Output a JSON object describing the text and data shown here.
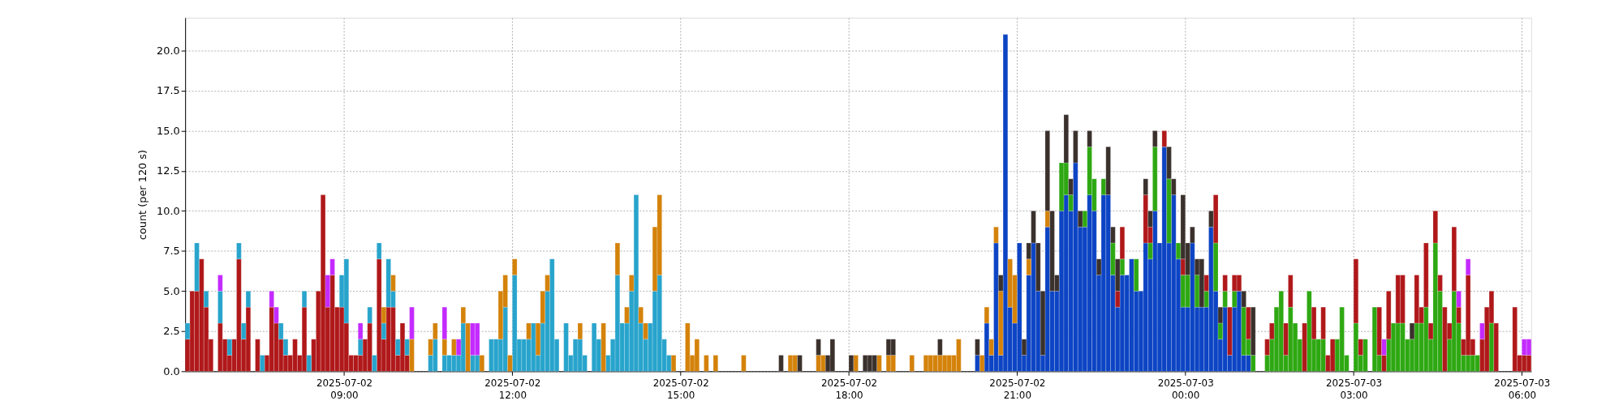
{
  "chart_data": {
    "type": "bar",
    "stacked": true,
    "ylabel": "count (per 120 s)",
    "grid": true,
    "xlim": [
      "2025-07-02T06:10",
      "2025-07-03T06:10"
    ],
    "xticks": [
      {
        "value": "2025-07-02T09:00",
        "label": "2025-07-02\n09:00"
      },
      {
        "value": "2025-07-02T12:00",
        "label": "2025-07-02\n12:00"
      },
      {
        "value": "2025-07-02T15:00",
        "label": "2025-07-02\n15:00"
      },
      {
        "value": "2025-07-02T18:00",
        "label": "2025-07-02\n18:00"
      },
      {
        "value": "2025-07-02T21:00",
        "label": "2025-07-02\n21:00"
      },
      {
        "value": "2025-07-03T00:00",
        "label": "2025-07-03\n00:00"
      },
      {
        "value": "2025-07-03T03:00",
        "label": "2025-07-03\n03:00"
      },
      {
        "value": "2025-07-03T06:00",
        "label": "2025-07-03\n06:00"
      }
    ],
    "ylim": [
      0,
      22.05
    ],
    "yticks": [
      {
        "value": 0,
        "label": "0.0"
      },
      {
        "value": 2.5,
        "label": "2.5"
      },
      {
        "value": 5,
        "label": "5.0"
      },
      {
        "value": 7.5,
        "label": "7.5"
      },
      {
        "value": 10,
        "label": "10.0"
      },
      {
        "value": 12.5,
        "label": "12.5"
      },
      {
        "value": 15,
        "label": "15.0"
      },
      {
        "value": 17.5,
        "label": "17.5"
      },
      {
        "value": 20,
        "label": "20.0"
      }
    ],
    "x": [
      "2025-07-02T06:10",
      "2025-07-02T06:15",
      "2025-07-02T06:20",
      "2025-07-02T06:25",
      "2025-07-02T06:30",
      "2025-07-02T06:35",
      "2025-07-02T06:40",
      "2025-07-02T06:45",
      "2025-07-02T06:50",
      "2025-07-02T06:55",
      "2025-07-02T07:00",
      "2025-07-02T07:05",
      "2025-07-02T07:10",
      "2025-07-02T07:15",
      "2025-07-02T07:20",
      "2025-07-02T07:25",
      "2025-07-02T07:30",
      "2025-07-02T07:35",
      "2025-07-02T07:40",
      "2025-07-02T07:45",
      "2025-07-02T07:50",
      "2025-07-02T07:55",
      "2025-07-02T08:00",
      "2025-07-02T08:05",
      "2025-07-02T08:10",
      "2025-07-02T08:15",
      "2025-07-02T08:20",
      "2025-07-02T08:25",
      "2025-07-02T08:30",
      "2025-07-02T08:35",
      "2025-07-02T08:40",
      "2025-07-02T08:45",
      "2025-07-02T08:50",
      "2025-07-02T08:55",
      "2025-07-02T09:00",
      "2025-07-02T09:05",
      "2025-07-02T09:10",
      "2025-07-02T09:15",
      "2025-07-02T09:20",
      "2025-07-02T09:25",
      "2025-07-02T09:30",
      "2025-07-02T09:35",
      "2025-07-02T09:40",
      "2025-07-02T09:45",
      "2025-07-02T09:50",
      "2025-07-02T09:55",
      "2025-07-02T10:00",
      "2025-07-02T10:05",
      "2025-07-02T10:10",
      "2025-07-02T10:15",
      "2025-07-02T10:20",
      "2025-07-02T10:25",
      "2025-07-02T10:30",
      "2025-07-02T10:35",
      "2025-07-02T10:40",
      "2025-07-02T10:45",
      "2025-07-02T10:50",
      "2025-07-02T10:55",
      "2025-07-02T11:00",
      "2025-07-02T11:05",
      "2025-07-02T11:10",
      "2025-07-02T11:15",
      "2025-07-02T11:20",
      "2025-07-02T11:25",
      "2025-07-02T11:30",
      "2025-07-02T11:35",
      "2025-07-02T11:40",
      "2025-07-02T11:45",
      "2025-07-02T11:50",
      "2025-07-02T11:55",
      "2025-07-02T12:00",
      "2025-07-02T12:05",
      "2025-07-02T12:10",
      "2025-07-02T12:15",
      "2025-07-02T12:20",
      "2025-07-02T12:25",
      "2025-07-02T12:30",
      "2025-07-02T12:35",
      "2025-07-02T12:40",
      "2025-07-02T12:45",
      "2025-07-02T12:50",
      "2025-07-02T12:55",
      "2025-07-02T13:00",
      "2025-07-02T13:05",
      "2025-07-02T13:10",
      "2025-07-02T13:15",
      "2025-07-02T13:20",
      "2025-07-02T13:25",
      "2025-07-02T13:30",
      "2025-07-02T13:35",
      "2025-07-02T13:40",
      "2025-07-02T13:45",
      "2025-07-02T13:50",
      "2025-07-02T13:55",
      "2025-07-02T14:00",
      "2025-07-02T14:05",
      "2025-07-02T14:10",
      "2025-07-02T14:15",
      "2025-07-02T14:20",
      "2025-07-02T14:25",
      "2025-07-02T14:30",
      "2025-07-02T14:35",
      "2025-07-02T14:40",
      "2025-07-02T14:45",
      "2025-07-02T14:50",
      "2025-07-02T14:55",
      "2025-07-02T15:00",
      "2025-07-02T15:05",
      "2025-07-02T15:10",
      "2025-07-02T15:15",
      "2025-07-02T15:20",
      "2025-07-02T15:25",
      "2025-07-02T15:30",
      "2025-07-02T15:35",
      "2025-07-02T15:40",
      "2025-07-02T15:45",
      "2025-07-02T15:50",
      "2025-07-02T15:55",
      "2025-07-02T16:00",
      "2025-07-02T16:05",
      "2025-07-02T16:10",
      "2025-07-02T16:15",
      "2025-07-02T16:20",
      "2025-07-02T16:25",
      "2025-07-02T16:30",
      "2025-07-02T16:35",
      "2025-07-02T16:40",
      "2025-07-02T16:45",
      "2025-07-02T16:50",
      "2025-07-02T16:55",
      "2025-07-02T17:00",
      "2025-07-02T17:05",
      "2025-07-02T17:10",
      "2025-07-02T17:15",
      "2025-07-02T17:20",
      "2025-07-02T17:25",
      "2025-07-02T17:30",
      "2025-07-02T17:35",
      "2025-07-02T17:40",
      "2025-07-02T17:45",
      "2025-07-02T17:50",
      "2025-07-02T17:55",
      "2025-07-02T18:00",
      "2025-07-02T18:05",
      "2025-07-02T18:10",
      "2025-07-02T18:15",
      "2025-07-02T18:20",
      "2025-07-02T18:25",
      "2025-07-02T18:30",
      "2025-07-02T18:35",
      "2025-07-02T18:40",
      "2025-07-02T18:45",
      "2025-07-02T18:50",
      "2025-07-02T18:55",
      "2025-07-02T19:00",
      "2025-07-02T19:05",
      "2025-07-02T19:10",
      "2025-07-02T19:15",
      "2025-07-02T19:20",
      "2025-07-02T19:25",
      "2025-07-02T19:30",
      "2025-07-02T19:35",
      "2025-07-02T19:40",
      "2025-07-02T19:45",
      "2025-07-02T19:50",
      "2025-07-02T19:55",
      "2025-07-02T20:00",
      "2025-07-02T20:05",
      "2025-07-02T20:10",
      "2025-07-02T20:15",
      "2025-07-02T20:20",
      "2025-07-02T20:25",
      "2025-07-02T20:30",
      "2025-07-02T20:35",
      "2025-07-02T20:40",
      "2025-07-02T20:45",
      "2025-07-02T20:50",
      "2025-07-02T20:55",
      "2025-07-02T21:00",
      "2025-07-02T21:05",
      "2025-07-02T21:10",
      "2025-07-02T21:15",
      "2025-07-02T21:20",
      "2025-07-02T21:25",
      "2025-07-02T21:30",
      "2025-07-02T21:35",
      "2025-07-02T21:40",
      "2025-07-02T21:45",
      "2025-07-02T21:50",
      "2025-07-02T21:55",
      "2025-07-02T22:00",
      "2025-07-02T22:05",
      "2025-07-02T22:10",
      "2025-07-02T22:15",
      "2025-07-02T22:20",
      "2025-07-02T22:25",
      "2025-07-02T22:30",
      "2025-07-02T22:35",
      "2025-07-02T22:40",
      "2025-07-02T22:45",
      "2025-07-02T22:50",
      "2025-07-02T22:55",
      "2025-07-02T23:00",
      "2025-07-02T23:05",
      "2025-07-02T23:10",
      "2025-07-02T23:15",
      "2025-07-02T23:20",
      "2025-07-02T23:25",
      "2025-07-02T23:30",
      "2025-07-02T23:35",
      "2025-07-02T23:40",
      "2025-07-02T23:45",
      "2025-07-02T23:50",
      "2025-07-02T23:55",
      "2025-07-03T00:00",
      "2025-07-03T00:05",
      "2025-07-03T00:10",
      "2025-07-03T00:15",
      "2025-07-03T00:20",
      "2025-07-03T00:25",
      "2025-07-03T00:30",
      "2025-07-03T00:35",
      "2025-07-03T00:40",
      "2025-07-03T00:45",
      "2025-07-03T00:50",
      "2025-07-03T00:55",
      "2025-07-03T01:00",
      "2025-07-03T01:05",
      "2025-07-03T01:10",
      "2025-07-03T01:15",
      "2025-07-03T01:20",
      "2025-07-03T01:25",
      "2025-07-03T01:30",
      "2025-07-03T01:35",
      "2025-07-03T01:40",
      "2025-07-03T01:45",
      "2025-07-03T01:50",
      "2025-07-03T01:55",
      "2025-07-03T02:00",
      "2025-07-03T02:05",
      "2025-07-03T02:10",
      "2025-07-03T02:15",
      "2025-07-03T02:20",
      "2025-07-03T02:25",
      "2025-07-03T02:30",
      "2025-07-03T02:35",
      "2025-07-03T02:40",
      "2025-07-03T02:45",
      "2025-07-03T02:50",
      "2025-07-03T02:55",
      "2025-07-03T03:00",
      "2025-07-03T03:05",
      "2025-07-03T03:10",
      "2025-07-03T03:15",
      "2025-07-03T03:20",
      "2025-07-03T03:25",
      "2025-07-03T03:30",
      "2025-07-03T03:35",
      "2025-07-03T03:40",
      "2025-07-03T03:45",
      "2025-07-03T03:50",
      "2025-07-03T03:55",
      "2025-07-03T04:00",
      "2025-07-03T04:05",
      "2025-07-03T04:10",
      "2025-07-03T04:15",
      "2025-07-03T04:20",
      "2025-07-03T04:25",
      "2025-07-03T04:30",
      "2025-07-03T04:35",
      "2025-07-03T04:40",
      "2025-07-03T04:45",
      "2025-07-03T04:50",
      "2025-07-03T04:55",
      "2025-07-03T05:00",
      "2025-07-03T05:05",
      "2025-07-03T05:10",
      "2025-07-03T05:15",
      "2025-07-03T05:20",
      "2025-07-03T05:25",
      "2025-07-03T05:30",
      "2025-07-03T05:35",
      "2025-07-03T05:40",
      "2025-07-03T05:45",
      "2025-07-03T05:50",
      "2025-07-03T05:55",
      "2025-07-03T06:00",
      "2025-07-03T06:05"
    ],
    "series": [
      {
        "color": "#0c44c4",
        "values": [
          0,
          0,
          0,
          0,
          0,
          0,
          0,
          0,
          0,
          0,
          0,
          0,
          0,
          0,
          0,
          0,
          0,
          0,
          0,
          0,
          0,
          0,
          0,
          0,
          0,
          0,
          0,
          0,
          0,
          0,
          0,
          0,
          0,
          0,
          0,
          0,
          0,
          0,
          0,
          0,
          0,
          0,
          0,
          0,
          0,
          0,
          0,
          0,
          0,
          0,
          0,
          0,
          0,
          0,
          0,
          0,
          0,
          0,
          0,
          0,
          0,
          0,
          0,
          0,
          0,
          0,
          0,
          0,
          0,
          0,
          0,
          0,
          0,
          0,
          0,
          0,
          0,
          0,
          0,
          0,
          0,
          0,
          0,
          0,
          0,
          0,
          0,
          0,
          0,
          0,
          0,
          0,
          0,
          0,
          0,
          0,
          0,
          0,
          0,
          0,
          0,
          0,
          0,
          0,
          0,
          0,
          0,
          0,
          0,
          0,
          0,
          0,
          0,
          0,
          0,
          0,
          0,
          0,
          0,
          0,
          0,
          0,
          0,
          0,
          0,
          0,
          0,
          0,
          0,
          0,
          0,
          0,
          0,
          0,
          0,
          0,
          0,
          0,
          0,
          0,
          0,
          0,
          0,
          0,
          0,
          0,
          0,
          0,
          0,
          0,
          0,
          0,
          0,
          0,
          0,
          0,
          0,
          0,
          0,
          0,
          0,
          0,
          0,
          0,
          0,
          0,
          0,
          0,
          0,
          1,
          0,
          3,
          1,
          8,
          1,
          21,
          4,
          3,
          8,
          1,
          6,
          8,
          5,
          1,
          9,
          5,
          5,
          10,
          11,
          10,
          13,
          9,
          9,
          11,
          10,
          6,
          11,
          11,
          6,
          4,
          6,
          6,
          7,
          5,
          5,
          8,
          7,
          10,
          8,
          14,
          8,
          11,
          7,
          4,
          4,
          8,
          4,
          4,
          4,
          9,
          5,
          2,
          4,
          1,
          4,
          5,
          1,
          1,
          0,
          0,
          0,
          0,
          0,
          0,
          0,
          0,
          0,
          0,
          0,
          0,
          0,
          0,
          0,
          0,
          0,
          0,
          0,
          0,
          0,
          0,
          0,
          0,
          0,
          0,
          0,
          0,
          0,
          0,
          0,
          0,
          0,
          0,
          0,
          0,
          0,
          0,
          0,
          0,
          0,
          0,
          0,
          0,
          0,
          0,
          0,
          0,
          0,
          0,
          0,
          0,
          0,
          0,
          0,
          0,
          0,
          0,
          0,
          0
        ]
      },
      {
        "color": "#2ea812",
        "values": [
          0,
          0,
          0,
          0,
          0,
          0,
          0,
          0,
          0,
          0,
          0,
          0,
          0,
          0,
          0,
          0,
          0,
          0,
          0,
          0,
          0,
          0,
          0,
          0,
          0,
          0,
          0,
          0,
          0,
          0,
          0,
          0,
          0,
          0,
          0,
          0,
          0,
          0,
          0,
          0,
          0,
          0,
          0,
          0,
          0,
          0,
          0,
          0,
          0,
          0,
          0,
          0,
          0,
          0,
          0,
          0,
          0,
          0,
          0,
          0,
          0,
          0,
          0,
          0,
          0,
          0,
          0,
          0,
          0,
          0,
          0,
          0,
          0,
          0,
          0,
          0,
          0,
          0,
          0,
          0,
          0,
          0,
          0,
          0,
          0,
          0,
          0,
          0,
          0,
          0,
          0,
          0,
          0,
          0,
          0,
          0,
          0,
          0,
          0,
          0,
          0,
          0,
          0,
          0,
          0,
          0,
          0,
          0,
          0,
          0,
          0,
          0,
          0,
          0,
          0,
          0,
          0,
          0,
          0,
          0,
          0,
          0,
          0,
          0,
          0,
          0,
          0,
          0,
          0,
          0,
          0,
          0,
          0,
          0,
          0,
          0,
          0,
          0,
          0,
          0,
          0,
          0,
          0,
          0,
          0,
          0,
          0,
          0,
          0,
          0,
          0,
          0,
          0,
          0,
          0,
          0,
          0,
          0,
          0,
          0,
          0,
          0,
          0,
          0,
          0,
          0,
          0,
          0,
          0,
          0,
          0,
          0,
          0,
          0,
          0,
          0,
          0,
          0,
          0,
          0,
          0,
          0,
          0,
          0,
          0,
          0,
          0,
          3,
          2,
          1,
          0,
          0,
          1,
          3,
          2,
          0,
          1,
          0,
          2,
          0,
          1,
          0,
          0,
          2,
          0,
          0,
          1,
          4,
          0,
          0,
          4,
          0,
          1,
          2,
          2,
          0,
          2,
          0,
          1,
          0,
          3,
          1,
          1,
          0,
          1,
          0,
          3,
          1,
          1,
          0,
          0,
          1,
          2,
          4,
          5,
          1,
          4,
          3,
          2,
          0,
          5,
          2,
          2,
          2,
          0,
          0,
          2,
          4,
          1,
          0,
          3,
          1,
          2,
          0,
          4,
          1,
          0,
          2,
          3,
          3,
          3,
          2,
          2,
          3,
          3,
          4,
          2,
          8,
          5,
          0,
          2,
          5,
          3,
          1,
          1,
          1,
          1,
          0,
          0,
          3,
          0,
          0,
          0,
          0,
          0,
          0,
          0,
          0
        ]
      },
      {
        "color": "#b0181a",
        "values": [
          2,
          5,
          5,
          7,
          4,
          2,
          0,
          3,
          2,
          1,
          2,
          7,
          2,
          4,
          0,
          2,
          0,
          1,
          4,
          3,
          2,
          1,
          1,
          2,
          1,
          4,
          0,
          2,
          5,
          11,
          4,
          6,
          4,
          4,
          3,
          1,
          1,
          1,
          2,
          3,
          0,
          7,
          2,
          4,
          4,
          1,
          3,
          1,
          0,
          0,
          0,
          0,
          0,
          0,
          0,
          0,
          0,
          0,
          0,
          0,
          0,
          0,
          0,
          0,
          0,
          0,
          0,
          0,
          0,
          0,
          0,
          0,
          0,
          0,
          0,
          0,
          0,
          0,
          0,
          0,
          0,
          0,
          0,
          0,
          0,
          0,
          0,
          0,
          0,
          0,
          0,
          0,
          0,
          0,
          0,
          0,
          0,
          0,
          0,
          0,
          0,
          0,
          0,
          0,
          0,
          0,
          0,
          0,
          0,
          0,
          0,
          0,
          0,
          0,
          0,
          0,
          0,
          0,
          0,
          0,
          0,
          0,
          0,
          0,
          0,
          0,
          0,
          0,
          0,
          0,
          0,
          0,
          0,
          0,
          0,
          0,
          0,
          0,
          0,
          0,
          0,
          0,
          0,
          0,
          0,
          0,
          0,
          0,
          0,
          0,
          0,
          0,
          0,
          0,
          0,
          0,
          0,
          0,
          0,
          0,
          0,
          0,
          0,
          0,
          0,
          0,
          0,
          0,
          0,
          0,
          0,
          0,
          0,
          0,
          0,
          0,
          0,
          0,
          0,
          0,
          0,
          0,
          0,
          0,
          0,
          0,
          0,
          0,
          0,
          0,
          0,
          0,
          0,
          0,
          0,
          0,
          0,
          0,
          0,
          1,
          2,
          0,
          0,
          0,
          0,
          3,
          1,
          0,
          0,
          1,
          0,
          0,
          0,
          1,
          0,
          0,
          0,
          0,
          1,
          0,
          3,
          0,
          1,
          3,
          1,
          1,
          0,
          2,
          0,
          0,
          0,
          1,
          1,
          0,
          0,
          2,
          2,
          0,
          0,
          3,
          0,
          2,
          0,
          2,
          1,
          2,
          0,
          0,
          0,
          0,
          4,
          1,
          0,
          0,
          0,
          3,
          1,
          3,
          0,
          3,
          3,
          0,
          0,
          3,
          1,
          4,
          1,
          2,
          1,
          4,
          1,
          4,
          1,
          1,
          5,
          1,
          0,
          2,
          4,
          2,
          3,
          0,
          0,
          0,
          4,
          1,
          1,
          1
        ]
      },
      {
        "color": "#28a4cc",
        "values": [
          1,
          0,
          3,
          0,
          1,
          0,
          0,
          2,
          0,
          1,
          0,
          1,
          1,
          1,
          0,
          0,
          1,
          0,
          0,
          0,
          1,
          1,
          0,
          0,
          0,
          1,
          1,
          0,
          0,
          0,
          0,
          0,
          0,
          2,
          4,
          0,
          0,
          1,
          0,
          1,
          1,
          1,
          1,
          3,
          1,
          1,
          0,
          1,
          0,
          0,
          0,
          0,
          1,
          2,
          0,
          1,
          1,
          1,
          1,
          3,
          0,
          1,
          1,
          0,
          0,
          2,
          2,
          2,
          4,
          0,
          6,
          2,
          2,
          2,
          3,
          1,
          3,
          5,
          7,
          2,
          0,
          3,
          1,
          2,
          2,
          1,
          0,
          3,
          2,
          0,
          1,
          2,
          6,
          3,
          3,
          5,
          11,
          3,
          2,
          3,
          5,
          6,
          2,
          1,
          0,
          0,
          0,
          0,
          0,
          0,
          0,
          0,
          0,
          0,
          0,
          0,
          0,
          0,
          0,
          0,
          0,
          0,
          0,
          0,
          0,
          0,
          0,
          0,
          0,
          0,
          0,
          0,
          0,
          0,
          0,
          0,
          0,
          0,
          0,
          0,
          0,
          0,
          0,
          0,
          0,
          0,
          0,
          0,
          0,
          0,
          0,
          0,
          0,
          0,
          0,
          0,
          0,
          0,
          0,
          0,
          0,
          0,
          0,
          0,
          0,
          0,
          0,
          0,
          0,
          0,
          0,
          0,
          0,
          0,
          0,
          0,
          0,
          0,
          0,
          0,
          0,
          0,
          0,
          0,
          0,
          0,
          0,
          0,
          0,
          0,
          0,
          0,
          0,
          0,
          0,
          0,
          0,
          0,
          0,
          0,
          0,
          0,
          0,
          0,
          0,
          0,
          0,
          0,
          0,
          0,
          0,
          0,
          0,
          0,
          0,
          0,
          0,
          0,
          0,
          0,
          0,
          0,
          0,
          0,
          0,
          0,
          0,
          0,
          0,
          0,
          0,
          0,
          0,
          0,
          0,
          0,
          0,
          0,
          0,
          0,
          0,
          0,
          0,
          0,
          0,
          0,
          0,
          0,
          0,
          0,
          0,
          0,
          0,
          0,
          0,
          0,
          0,
          0,
          0,
          0,
          0,
          0,
          0,
          0,
          0,
          0,
          0,
          0,
          0,
          0,
          0,
          0,
          0,
          0,
          0,
          0,
          0,
          0,
          0,
          0,
          0,
          0,
          0,
          0,
          0,
          0,
          0,
          0
        ]
      },
      {
        "color": "#d4820a",
        "values": [
          0,
          0,
          0,
          0,
          0,
          0,
          0,
          0,
          0,
          0,
          0,
          0,
          0,
          0,
          0,
          0,
          0,
          0,
          0,
          0,
          0,
          0,
          0,
          0,
          0,
          0,
          0,
          0,
          0,
          0,
          0,
          0,
          0,
          0,
          0,
          0,
          0,
          0,
          0,
          0,
          0,
          0,
          1,
          0,
          1,
          0,
          0,
          0,
          2,
          0,
          0,
          0,
          1,
          1,
          0,
          1,
          0,
          1,
          0,
          1,
          3,
          0,
          0,
          1,
          0,
          0,
          0,
          3,
          2,
          1,
          1,
          0,
          0,
          1,
          0,
          2,
          2,
          1,
          0,
          0,
          0,
          0,
          0,
          0,
          1,
          0,
          0,
          0,
          0,
          3,
          0,
          0,
          2,
          0,
          1,
          1,
          0,
          1,
          1,
          0,
          4,
          5,
          0,
          0,
          1,
          0,
          0,
          3,
          1,
          2,
          0,
          1,
          0,
          1,
          0,
          0,
          0,
          0,
          0,
          1,
          0,
          0,
          0,
          0,
          0,
          0,
          0,
          0,
          0,
          1,
          1,
          0,
          0,
          0,
          0,
          1,
          1,
          0,
          0,
          0,
          0,
          0,
          0,
          1,
          0,
          0,
          0,
          0,
          1,
          0,
          1,
          1,
          0,
          0,
          0,
          1,
          0,
          0,
          1,
          1,
          1,
          1,
          1,
          1,
          1,
          2,
          0,
          0,
          0,
          0,
          1,
          1,
          1,
          1,
          4,
          0,
          3,
          3,
          0,
          0,
          1,
          0,
          0,
          0,
          1,
          0,
          0,
          0,
          0,
          0,
          0,
          0,
          0,
          0,
          0,
          0,
          0,
          0,
          0,
          0,
          0,
          0,
          0,
          0,
          0,
          0,
          0,
          0,
          0,
          0,
          0,
          0,
          0,
          0,
          0,
          0,
          0,
          0,
          0,
          0,
          0,
          0,
          0,
          0,
          0,
          0,
          0,
          0,
          0,
          0,
          0,
          0,
          0,
          0,
          0,
          0,
          0,
          0,
          0,
          0,
          0,
          0,
          0,
          0,
          0,
          0,
          0,
          0,
          0,
          0,
          0,
          0,
          0,
          0,
          0,
          0,
          0,
          0,
          0,
          0,
          0,
          0,
          0,
          0,
          0,
          0,
          0,
          0,
          0,
          0,
          0,
          0,
          0,
          0,
          0,
          0,
          0,
          0,
          0,
          0,
          0,
          0,
          0,
          0,
          0,
          0,
          0,
          0
        ]
      },
      {
        "color": "#c42aff",
        "values": [
          0,
          0,
          0,
          0,
          0,
          0,
          0,
          1,
          0,
          0,
          0,
          0,
          0,
          0,
          0,
          0,
          0,
          0,
          1,
          1,
          0,
          0,
          0,
          0,
          0,
          0,
          0,
          0,
          0,
          0,
          2,
          1,
          0,
          0,
          0,
          0,
          0,
          1,
          0,
          0,
          0,
          0,
          0,
          0,
          0,
          0,
          0,
          0,
          2,
          0,
          0,
          0,
          0,
          0,
          0,
          2,
          0,
          0,
          1,
          0,
          0,
          2,
          2,
          0,
          0,
          0,
          0,
          0,
          0,
          0,
          0,
          0,
          0,
          0,
          0,
          0,
          0,
          0,
          0,
          0,
          0,
          0,
          0,
          0,
          0,
          0,
          0,
          0,
          0,
          0,
          0,
          0,
          0,
          0,
          0,
          0,
          0,
          0,
          0,
          0,
          0,
          0,
          0,
          0,
          0,
          0,
          0,
          0,
          0,
          0,
          0,
          0,
          0,
          0,
          0,
          0,
          0,
          0,
          0,
          0,
          0,
          0,
          0,
          0,
          0,
          0,
          0,
          0,
          0,
          0,
          0,
          0,
          0,
          0,
          0,
          0,
          0,
          0,
          0,
          0,
          0,
          0,
          0,
          0,
          0,
          0,
          0,
          0,
          0,
          0,
          0,
          0,
          0,
          0,
          0,
          0,
          0,
          0,
          0,
          0,
          0,
          0,
          0,
          0,
          0,
          0,
          0,
          0,
          0,
          0,
          0,
          0,
          0,
          0,
          0,
          0,
          0,
          0,
          0,
          0,
          0,
          0,
          0,
          0,
          0,
          0,
          0,
          0,
          0,
          0,
          0,
          0,
          0,
          0,
          0,
          0,
          0,
          0,
          0,
          0,
          0,
          0,
          0,
          0,
          0,
          0,
          0,
          0,
          0,
          0,
          0,
          0,
          0,
          0,
          0,
          0,
          0,
          0,
          0,
          0,
          0,
          0,
          0,
          0,
          0,
          0,
          0,
          0,
          0,
          0,
          0,
          0,
          0,
          0,
          0,
          0,
          0,
          0,
          0,
          0,
          0,
          0,
          0,
          0,
          0,
          0,
          0,
          0,
          0,
          0,
          0,
          0,
          0,
          0,
          0,
          0,
          1,
          0,
          0,
          0,
          0,
          0,
          0,
          0,
          0,
          0,
          0,
          0,
          0,
          0,
          0,
          0,
          1,
          0,
          1,
          0,
          0,
          1,
          0,
          0,
          0,
          0,
          0,
          0,
          0,
          0,
          1,
          1
        ]
      },
      {
        "color": "#3a302c",
        "values": [
          0,
          0,
          0,
          0,
          0,
          0,
          0,
          0,
          0,
          0,
          0,
          0,
          0,
          0,
          0,
          0,
          0,
          0,
          0,
          0,
          0,
          0,
          0,
          0,
          0,
          0,
          0,
          0,
          0,
          0,
          0,
          0,
          0,
          0,
          0,
          0,
          0,
          0,
          0,
          0,
          0,
          0,
          0,
          0,
          0,
          0,
          0,
          0,
          0,
          0,
          0,
          0,
          0,
          0,
          0,
          0,
          0,
          0,
          0,
          0,
          0,
          0,
          0,
          0,
          0,
          0,
          0,
          0,
          0,
          0,
          0,
          0,
          0,
          0,
          0,
          0,
          0,
          0,
          0,
          0,
          0,
          0,
          0,
          0,
          0,
          0,
          0,
          0,
          0,
          0,
          0,
          0,
          0,
          0,
          0,
          0,
          0,
          0,
          0,
          0,
          0,
          0,
          0,
          0,
          0,
          0,
          0,
          0,
          0,
          0,
          0,
          0,
          0,
          0,
          0,
          0,
          0,
          0,
          0,
          0,
          0,
          0,
          0,
          0,
          0,
          0,
          0,
          1,
          0,
          0,
          0,
          1,
          0,
          0,
          0,
          1,
          0,
          1,
          2,
          0,
          0,
          0,
          1,
          0,
          0,
          1,
          1,
          1,
          0,
          0,
          1,
          1,
          0,
          0,
          0,
          0,
          0,
          0,
          0,
          0,
          0,
          1,
          0,
          0,
          0,
          0,
          0,
          0,
          0,
          1,
          0,
          0,
          0,
          0,
          1,
          0,
          0,
          0,
          0,
          1,
          1,
          2,
          3,
          4,
          5,
          5,
          1,
          0,
          3,
          1,
          2,
          1,
          0,
          1,
          0,
          1,
          0,
          3,
          1,
          2,
          0,
          0,
          0,
          0,
          0,
          1,
          1,
          1,
          0,
          0,
          2,
          1,
          0,
          4,
          2,
          1,
          1,
          3,
          0,
          1,
          0,
          1,
          0,
          0,
          0,
          0,
          1,
          0,
          3,
          0,
          0,
          0,
          0,
          0,
          0,
          0,
          0,
          0,
          0,
          0,
          0,
          0,
          0,
          0,
          0,
          0,
          0,
          0,
          0,
          0,
          0,
          0,
          0,
          0,
          0,
          0,
          0,
          0,
          0,
          0,
          0,
          0,
          1,
          0,
          0,
          0,
          0,
          0,
          0,
          0,
          0,
          0,
          0,
          0,
          0,
          0,
          0,
          0,
          0,
          0,
          0,
          0,
          0,
          0,
          0,
          0,
          0,
          0
        ]
      }
    ]
  }
}
